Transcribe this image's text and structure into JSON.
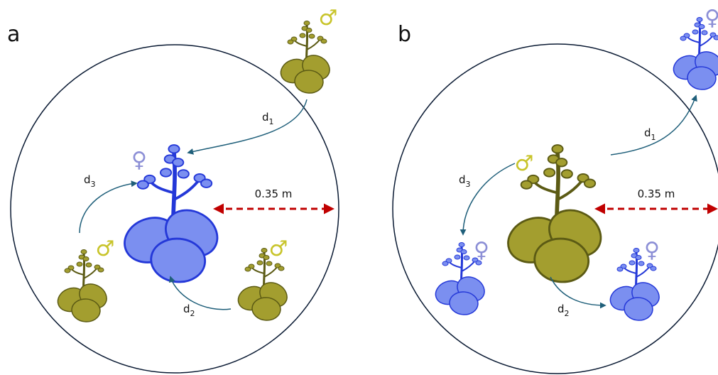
{
  "panels": [
    {
      "label": "a",
      "radius_label": "0.35 m",
      "distances": [
        {
          "letter": "d",
          "subscript": "1"
        },
        {
          "letter": "d",
          "subscript": "3"
        },
        {
          "letter": "d",
          "subscript": "2"
        }
      ],
      "symbols": [
        "♂",
        "♀",
        "♂",
        "♂"
      ]
    },
    {
      "label": "b",
      "radius_label": "0.35 m",
      "distances": [
        {
          "letter": "d",
          "subscript": "1"
        },
        {
          "letter": "d",
          "subscript": "3"
        },
        {
          "letter": "d",
          "subscript": "2"
        }
      ],
      "symbols": [
        "♀",
        "♂",
        "♀",
        "♀"
      ]
    }
  ]
}
